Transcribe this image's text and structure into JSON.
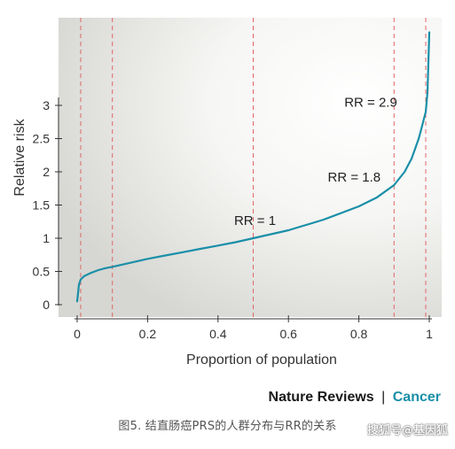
{
  "chart_data": {
    "type": "line",
    "xlabel": "Proportion of population",
    "ylabel": "Relative risk",
    "xlim": [
      0,
      1
    ],
    "ylim": [
      0,
      3.3
    ],
    "xticks": [
      "0",
      "0.2",
      "0.4",
      "0.6",
      "0.8",
      "1"
    ],
    "yticks": [
      "0",
      "0.5",
      "1",
      "1.5",
      "2",
      "2.5",
      "3"
    ],
    "reference_lines_x": [
      0.01,
      0.1,
      0.5,
      0.9,
      0.99
    ],
    "series": [
      {
        "color": "#1a8fa8",
        "x": [
          0.0,
          0.005,
          0.01,
          0.02,
          0.04,
          0.06,
          0.08,
          0.1,
          0.15,
          0.2,
          0.25,
          0.3,
          0.35,
          0.4,
          0.45,
          0.5,
          0.55,
          0.6,
          0.65,
          0.7,
          0.75,
          0.8,
          0.85,
          0.9,
          0.93,
          0.95,
          0.97,
          0.98,
          0.985,
          0.99,
          0.995,
          1.0
        ],
        "y": [
          0.05,
          0.3,
          0.38,
          0.43,
          0.48,
          0.52,
          0.55,
          0.57,
          0.63,
          0.69,
          0.74,
          0.79,
          0.84,
          0.89,
          0.94,
          1.0,
          1.06,
          1.12,
          1.2,
          1.28,
          1.38,
          1.48,
          1.61,
          1.8,
          2.0,
          2.2,
          2.5,
          2.7,
          2.8,
          2.9,
          3.2,
          4.1
        ]
      }
    ],
    "annotations": [
      {
        "text": "RR = 1",
        "x": 0.5,
        "y": 1.0
      },
      {
        "text": "RR = 1.8",
        "x": 0.9,
        "y": 1.8
      },
      {
        "text": "RR = 2.9",
        "x": 0.99,
        "y": 2.9
      }
    ]
  },
  "brand": {
    "name": "Nature Reviews",
    "separator": "|",
    "section": "Cancer"
  },
  "caption": "图5. 结直肠癌PRS的人群分布与RR的关系",
  "watermark": "搜狐号@基因狐",
  "colors": {
    "curve": "#1a8fa8",
    "ref_line": "#e06666",
    "axis": "#333333"
  }
}
